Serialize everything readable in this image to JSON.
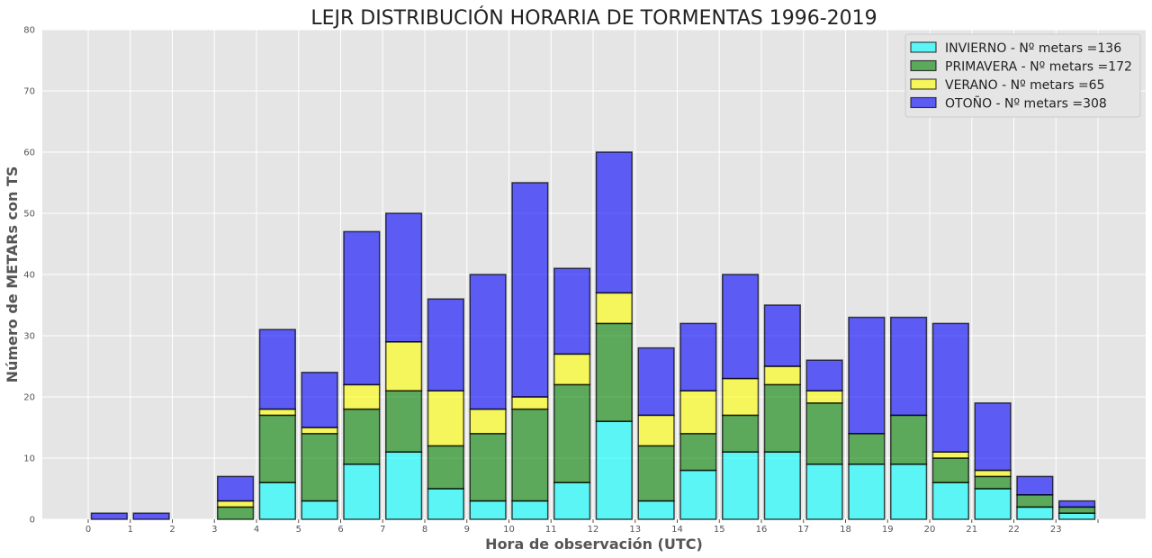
{
  "chart_data": {
    "type": "bar",
    "stacked": true,
    "title": "LEJR DISTRIBUCIÓN HORARIA DE TORMENTAS 1996-2019",
    "xlabel": "Hora de observación (UTC)",
    "ylabel": "Número de METARs con TS",
    "ylim": [
      0,
      80
    ],
    "yticks": [
      0,
      10,
      20,
      30,
      40,
      50,
      60,
      70,
      80
    ],
    "xticks": [
      "0",
      "1",
      "2",
      "3",
      "4",
      "5",
      "6",
      "7",
      "8",
      "9",
      "10",
      "11",
      "12",
      "13",
      "14",
      "15",
      "16",
      "17",
      "18",
      "19",
      "20",
      "21",
      "22",
      "23",
      ""
    ],
    "grid": true,
    "legend_position": "top-right",
    "categories": [
      "0",
      "1",
      "2",
      "3",
      "4",
      "5",
      "6",
      "7",
      "8",
      "9",
      "10",
      "11",
      "12",
      "13",
      "14",
      "15",
      "16",
      "17",
      "18",
      "19",
      "20",
      "21",
      "22",
      "23"
    ],
    "series": [
      {
        "name": "INVIERNO - Nº metars =136",
        "color": "#00FFFF",
        "values": [
          0,
          0,
          0,
          0,
          6,
          3,
          9,
          11,
          5,
          3,
          3,
          6,
          16,
          3,
          8,
          11,
          11,
          9,
          9,
          9,
          6,
          5,
          2,
          1
        ]
      },
      {
        "name": "PRIMAVERA - Nº metars =172",
        "color": "#008000",
        "values": [
          0,
          0,
          0,
          2,
          11,
          11,
          9,
          10,
          7,
          11,
          15,
          16,
          16,
          9,
          6,
          6,
          11,
          10,
          5,
          8,
          4,
          2,
          2,
          1
        ]
      },
      {
        "name": "VERANO - Nº metars =65",
        "color": "#FFFF00",
        "values": [
          0,
          0,
          0,
          1,
          1,
          1,
          4,
          8,
          9,
          4,
          2,
          5,
          5,
          5,
          7,
          6,
          3,
          2,
          0,
          0,
          1,
          1,
          0,
          0
        ]
      },
      {
        "name": "OTOÑO - Nº metars =308",
        "color": "#0000FF",
        "values": [
          1,
          1,
          0,
          4,
          13,
          9,
          25,
          21,
          15,
          22,
          35,
          14,
          23,
          11,
          11,
          17,
          10,
          5,
          19,
          16,
          21,
          11,
          3,
          1
        ]
      }
    ]
  }
}
